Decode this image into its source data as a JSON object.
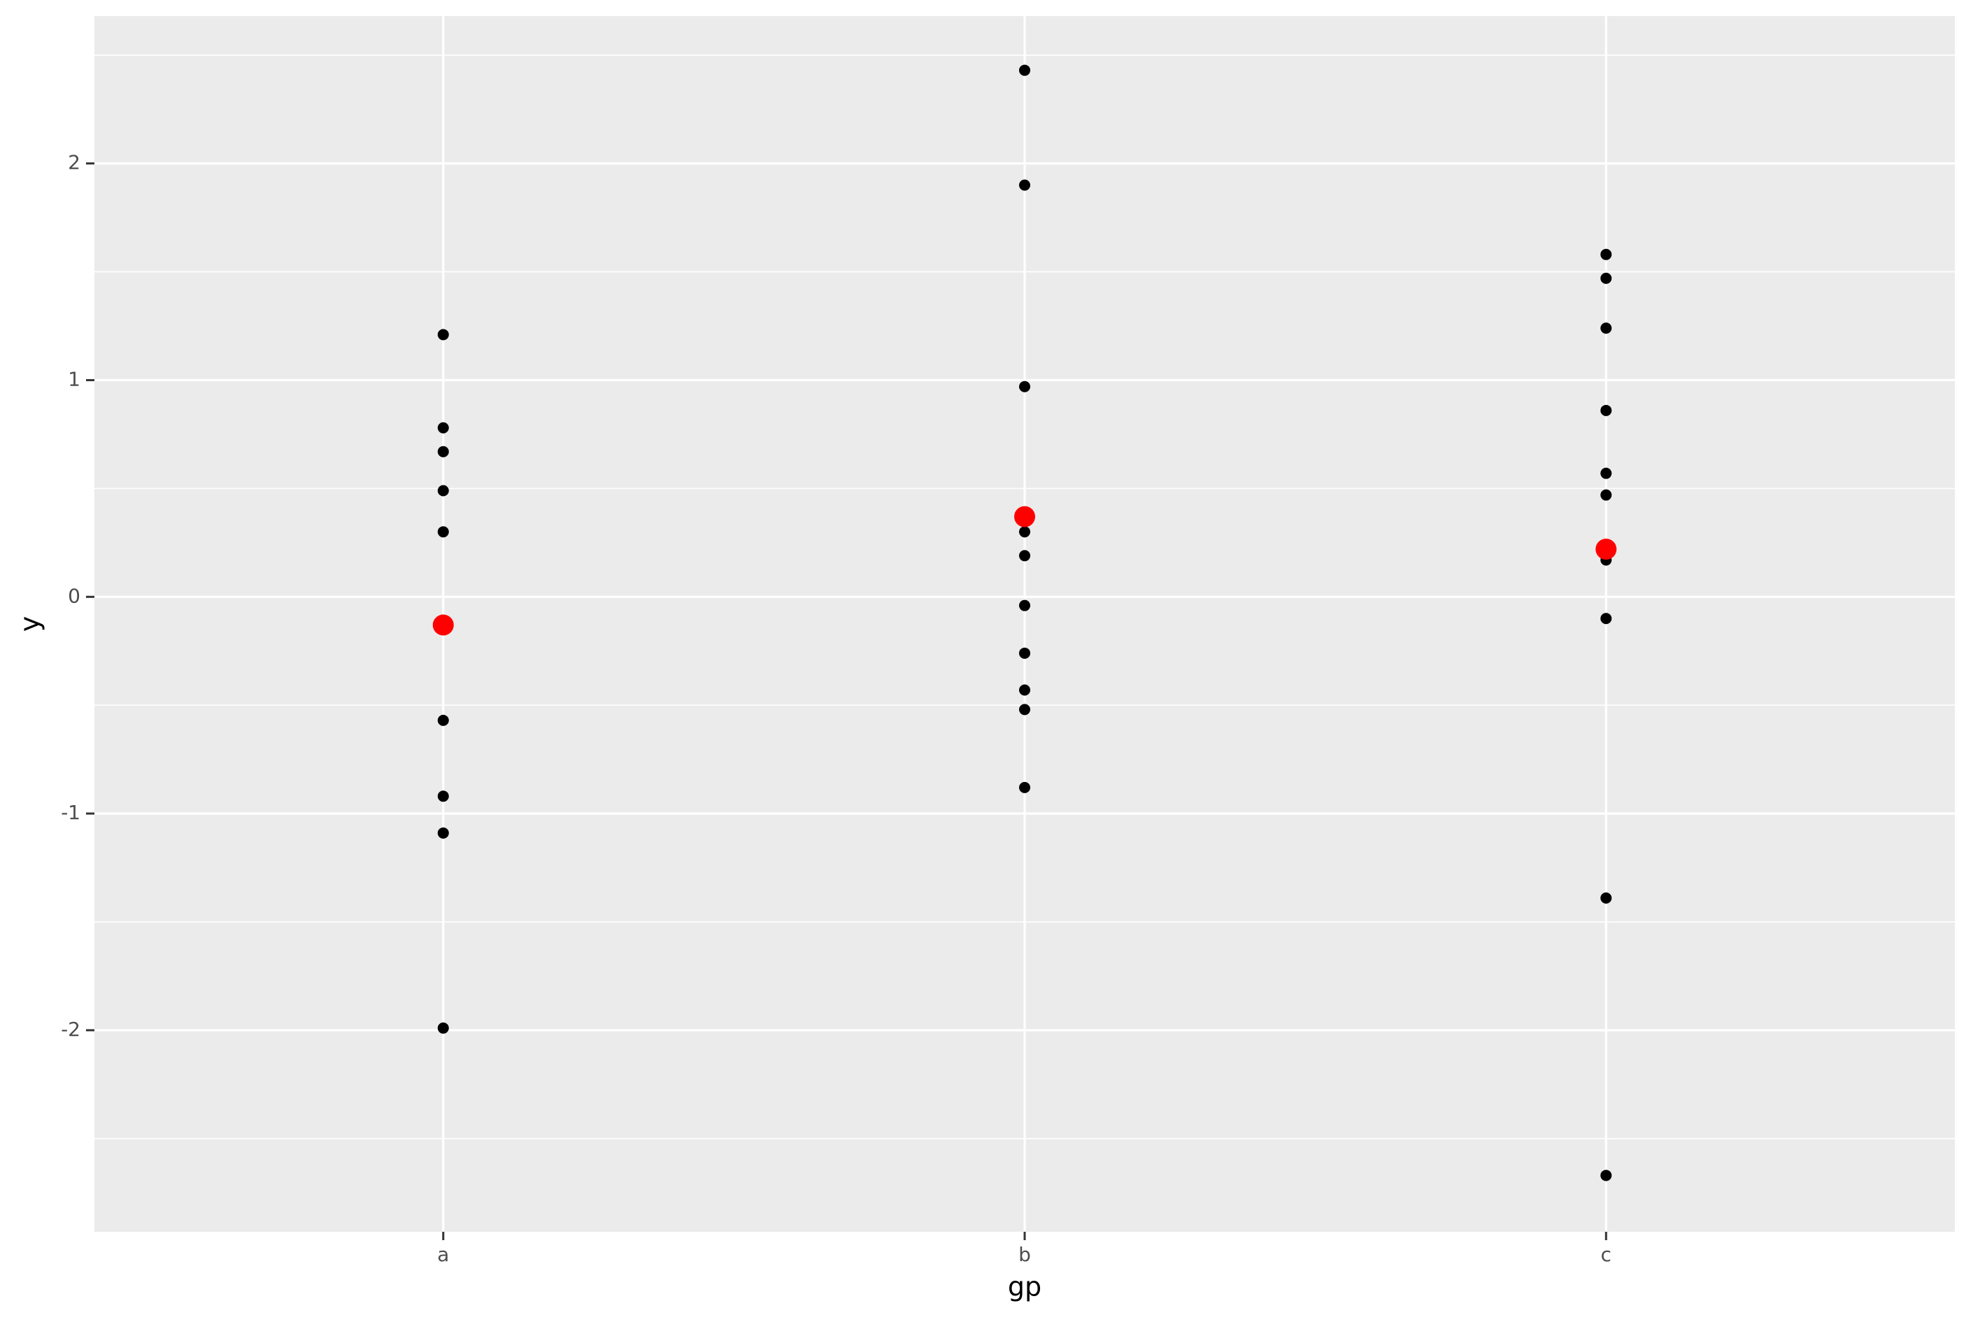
{
  "chart_data": {
    "type": "dot",
    "x_label": "gp",
    "y_label": "y",
    "categories": [
      "a",
      "b",
      "c"
    ],
    "values": [
      [
        1.21,
        0.78,
        0.67,
        0.49,
        0.3,
        -0.57,
        -0.92,
        -1.09,
        -1.99
      ],
      [
        2.43,
        1.9,
        0.97,
        0.37,
        0.3,
        0.19,
        -0.04,
        -0.26,
        -0.43,
        -0.52,
        -0.88
      ],
      [
        1.58,
        1.47,
        1.24,
        0.86,
        0.57,
        0.47,
        0.17,
        -0.1,
        -1.39,
        -2.67
      ]
    ],
    "means": [
      -0.13,
      0.37,
      0.22
    ],
    "color": "#000000",
    "mean_color": "#ff0000",
    "ylim": [
      -2.93,
      2.68
    ],
    "yticks": [
      -2,
      -1,
      0,
      1,
      2
    ],
    "grid": true
  }
}
